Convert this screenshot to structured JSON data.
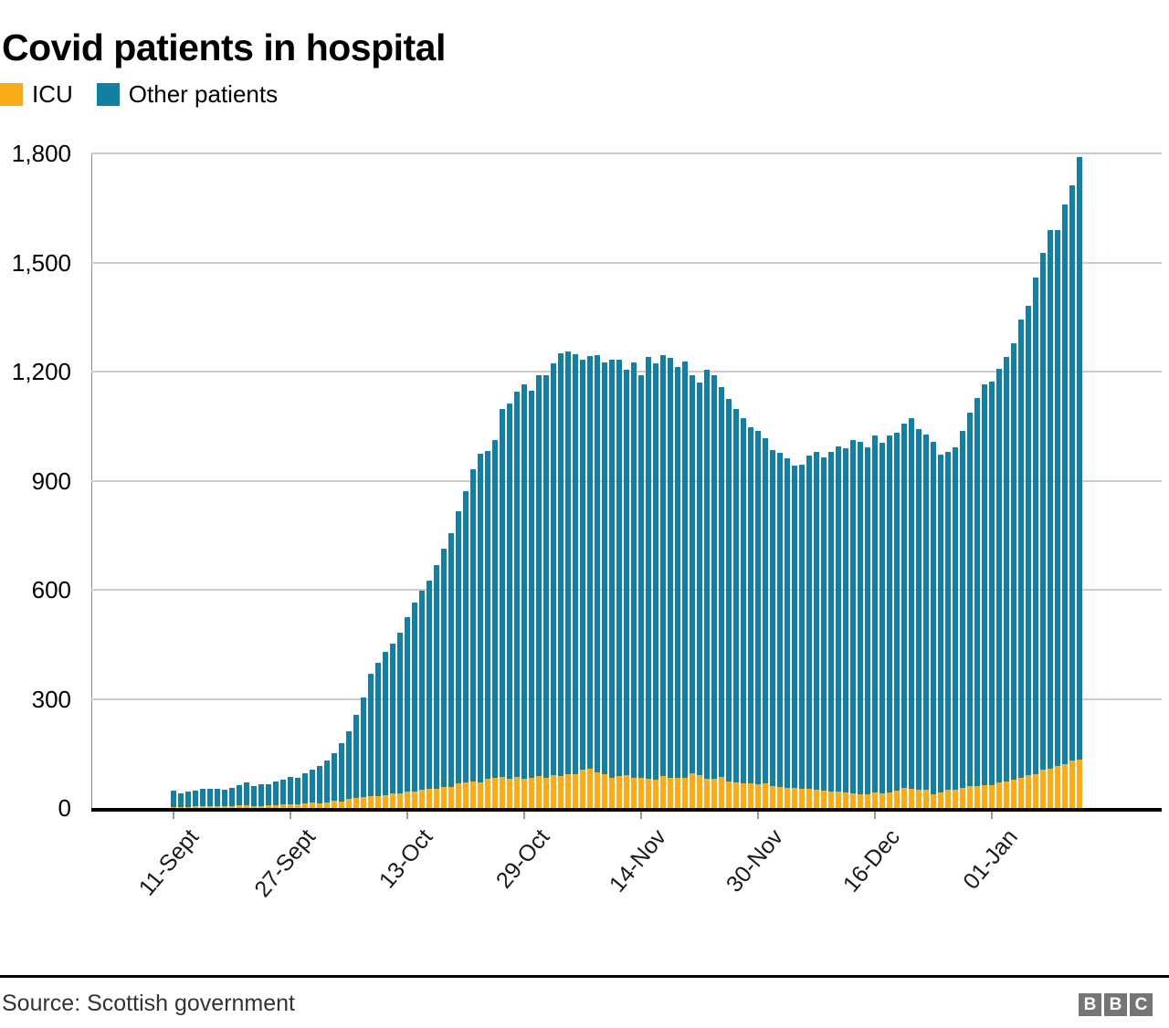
{
  "title": "Covid patients in hospital",
  "footer": {
    "source": "Source: Scottish government",
    "logo_letters": [
      "B",
      "B",
      "C"
    ]
  },
  "colors": {
    "icu": "#FAAB18",
    "other": "#1380A1",
    "gridline": "#cccccc",
    "axis": "#000000"
  },
  "chart_data": {
    "type": "bar",
    "stacked": true,
    "title": "Covid patients in hospital",
    "ylim": [
      0,
      1800
    ],
    "grid": "horizontal",
    "legend_position": "top-left",
    "y_tick_labels": [
      "0",
      "300",
      "600",
      "900",
      "1,200",
      "1,500",
      "1,800"
    ],
    "y_tick_values": [
      0,
      300,
      600,
      900,
      1200,
      1500,
      1800
    ],
    "x_tick_labels": [
      "11-Sept",
      "27-Sept",
      "13-Oct",
      "29-Oct",
      "14-Nov",
      "30-Nov",
      "16-Dec",
      "01-Jan"
    ],
    "x_tick_indices": [
      0,
      16,
      32,
      48,
      64,
      80,
      96,
      112
    ],
    "n_bars": 125,
    "series": [
      {
        "name": "ICU",
        "color": "#FAAB18",
        "values": [
          3,
          3,
          3,
          4,
          4,
          4,
          5,
          5,
          6,
          7,
          7,
          6,
          6,
          8,
          8,
          10,
          11,
          11,
          13,
          14,
          12,
          15,
          20,
          17,
          25,
          27,
          29,
          33,
          33,
          36,
          39,
          39,
          46,
          45,
          51,
          53,
          53,
          57,
          57,
          67,
          70,
          73,
          70,
          81,
          84,
          86,
          81,
          86,
          81,
          84,
          88,
          84,
          90,
          88,
          92,
          92,
          105,
          109,
          98,
          92,
          84,
          88,
          90,
          84,
          84,
          81,
          79,
          88,
          82,
          82,
          82,
          96,
          90,
          80,
          80,
          86,
          73,
          71,
          69,
          69,
          65,
          67,
          61,
          59,
          56,
          56,
          54,
          53,
          50,
          48,
          46,
          44,
          42,
          40,
          38,
          38,
          42,
          40,
          43,
          48,
          55,
          53,
          49,
          49,
          38,
          42,
          49,
          49,
          55,
          60,
          60,
          63,
          63,
          70,
          73,
          78,
          84,
          90,
          92,
          105,
          109,
          115,
          120,
          130,
          133
        ]
      },
      {
        "name": "Other patients",
        "color": "#1380A1",
        "values": [
          45,
          37,
          42,
          45,
          48,
          48,
          48,
          46,
          49,
          55,
          63,
          54,
          59,
          58,
          64,
          68,
          74,
          72,
          82,
          91,
          103,
          115,
          130,
          161,
          185,
          228,
          276,
          337,
          367,
          394,
          413,
          444,
          478,
          521,
          547,
          572,
          614,
          655,
          698,
          750,
          800,
          859,
          903,
          901,
          927,
          1011,
          1032,
          1059,
          1085,
          1063,
          1101,
          1105,
          1132,
          1162,
          1164,
          1156,
          1128,
          1135,
          1146,
          1133,
          1149,
          1145,
          1114,
          1141,
          1107,
          1159,
          1143,
          1156,
          1156,
          1130,
          1145,
          1093,
          1079,
          1126,
          1111,
          1072,
          1051,
          1025,
          1002,
          977,
          973,
          950,
          923,
          917,
          905,
          886,
          891,
          916,
          929,
          917,
          933,
          950,
          948,
          971,
          969,
          954,
          982,
          964,
          981,
          984,
          1002,
          1018,
          994,
          979,
          969,
          929,
          930,
          943,
          981,
          1026,
          1068,
          1101,
          1110,
          1138,
          1168,
          1201,
          1260,
          1292,
          1366,
          1421,
          1480,
          1474,
          1540,
          1581,
          1657
        ]
      }
    ]
  }
}
